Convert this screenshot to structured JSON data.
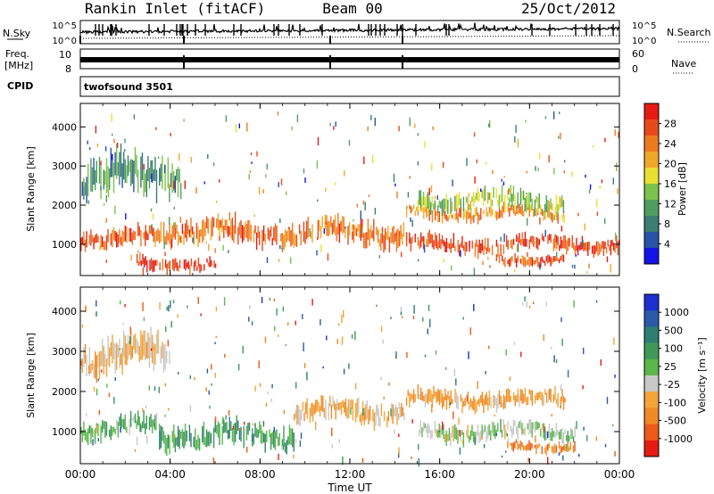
{
  "header": {
    "station": "Rankin Inlet (fitACF)",
    "beam": "Beam 00",
    "date": "25/Oct/2012"
  },
  "strip_labels": {
    "nsky": "N.Sky",
    "nsearch": "N.Search",
    "freq_line1": "Freq.",
    "freq_line2": "[MHz]",
    "nave": "Nave",
    "cpid": "CPID",
    "cpid_value": "twofsound 3501",
    "nsky_ticks": [
      "10^5",
      "10^0"
    ],
    "nsearch_ticks": [
      "10^5",
      "10^0"
    ],
    "freq_ticks": [
      "10",
      "8"
    ],
    "nave_ticks": [
      "60",
      "0"
    ]
  },
  "colors": {
    "power_scale": [
      "#1414e6",
      "#2a52a8",
      "#3c7e74",
      "#4f9e60",
      "#7cc24c",
      "#e8e030",
      "#f0a828",
      "#ee7a20",
      "#ea4a1a",
      "#e61b14"
    ],
    "velocity_scale": [
      "#e61b14",
      "#ee5a1a",
      "#f08a24",
      "#f3a43a",
      "#c8c8c8",
      "#5ab84a",
      "#3f9a5a",
      "#2f7e72",
      "#2a5aa8",
      "#1c2fd0"
    ],
    "ground_scatter": "#c8c8c8"
  },
  "chart_data": [
    {
      "type": "heatmap",
      "name": "power",
      "xlabel": "",
      "ylabel": "Slant Range [km]",
      "x_ticks": [
        "00:00",
        "04:00",
        "08:00",
        "12:00",
        "16:00",
        "20:00",
        "00:00"
      ],
      "y_ticks": [
        "1000",
        "2000",
        "3000",
        "4000"
      ],
      "xlim": [
        0,
        24
      ],
      "ylim": [
        200,
        4600
      ],
      "colorbar": {
        "label": "Power [dB]",
        "ticks": [
          "28",
          "24",
          "20",
          "16",
          "12",
          "8",
          "4"
        ],
        "range": [
          0,
          30
        ]
      },
      "echo_bands": [
        {
          "t_start": 0,
          "t_end": 3.5,
          "r_center": 1150,
          "r_width": 350,
          "value": 26
        },
        {
          "t_start": 2.5,
          "t_end": 6.0,
          "r_center": 500,
          "r_width": 250,
          "value": 28
        },
        {
          "t_start": 3.5,
          "t_end": 14.5,
          "r_center": 1300,
          "r_width": 450,
          "value": 24
        },
        {
          "t_start": 14.5,
          "t_end": 24,
          "r_center": 1000,
          "r_width": 300,
          "value": 27
        },
        {
          "t_start": 14.5,
          "t_end": 21.5,
          "r_center": 1800,
          "r_width": 250,
          "value": 22
        },
        {
          "t_start": 15.0,
          "t_end": 21.5,
          "r_center": 2100,
          "r_width": 350,
          "value": 14
        },
        {
          "t_start": 18.5,
          "t_end": 21.5,
          "r_center": 600,
          "r_width": 200,
          "value": 26
        },
        {
          "t_start": 0,
          "t_end": 4.5,
          "r_center": 2700,
          "r_width": 700,
          "value": 9
        }
      ]
    },
    {
      "type": "heatmap",
      "name": "velocity",
      "xlabel": "Time UT",
      "ylabel": "Slant Range [km]",
      "x_ticks": [
        "00:00",
        "04:00",
        "08:00",
        "12:00",
        "16:00",
        "20:00",
        "00:00"
      ],
      "y_ticks": [
        "1000",
        "2000",
        "3000",
        "4000"
      ],
      "xlim": [
        0,
        24
      ],
      "ylim": [
        200,
        4600
      ],
      "colorbar": {
        "label": "Velocity [m s⁻¹]",
        "ticks": [
          "1000",
          "500",
          "100",
          "25",
          "-25",
          "-100",
          "-500",
          "-1000"
        ],
        "range": [
          -1000,
          1000
        ]
      },
      "echo_bands": [
        {
          "t_start": 0,
          "t_end": 3.5,
          "r_center": 1100,
          "r_width": 350,
          "value": 200
        },
        {
          "t_start": 3.5,
          "t_end": 9.5,
          "r_center": 900,
          "r_width": 450,
          "value": 300
        },
        {
          "t_start": 9.5,
          "t_end": 14.5,
          "r_center": 1500,
          "r_width": 400,
          "value": -300
        },
        {
          "t_start": 14.5,
          "t_end": 21.5,
          "r_center": 1800,
          "r_width": 300,
          "value": -400
        },
        {
          "t_start": 15.0,
          "t_end": 22.0,
          "r_center": 1000,
          "r_width": 300,
          "value": 0
        },
        {
          "t_start": 19.0,
          "t_end": 22.0,
          "r_center": 650,
          "r_width": 200,
          "value": -600
        },
        {
          "t_start": 0,
          "t_end": 4.0,
          "r_center": 2900,
          "r_width": 600,
          "value": -250
        }
      ]
    }
  ]
}
